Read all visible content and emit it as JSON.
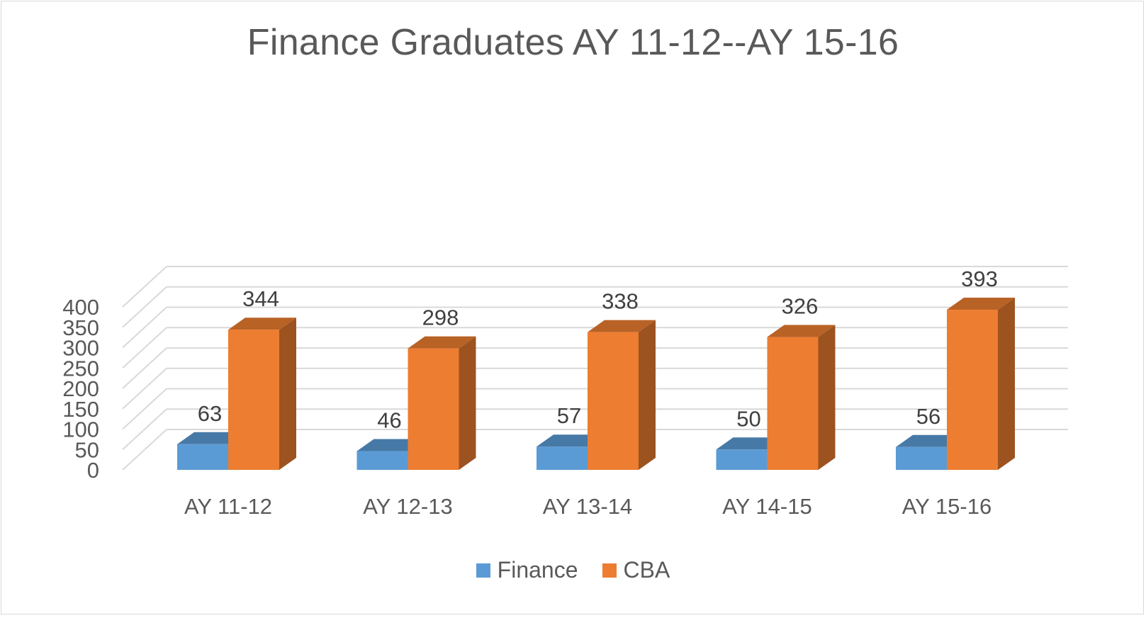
{
  "chart_data": {
    "type": "bar",
    "title": "Finance Graduates AY 11-12--AY 15-16",
    "categories": [
      "AY 11-12",
      "AY 12-13",
      "AY 13-14",
      "AY 14-15",
      "AY 15-16"
    ],
    "series": [
      {
        "name": "Finance",
        "values": [
          63,
          46,
          57,
          50,
          56
        ],
        "color": "#5b9bd5"
      },
      {
        "name": "CBA",
        "values": [
          344,
          298,
          338,
          326,
          393
        ],
        "color": "#ed7d31"
      }
    ],
    "xlabel": "",
    "ylabel": "",
    "ylim": [
      0,
      400
    ],
    "y_ticks": [
      0,
      50,
      100,
      150,
      200,
      250,
      300,
      350,
      400
    ],
    "grid": true,
    "style": "3d-clustered-column",
    "data_labels": true,
    "legend_position": "bottom"
  }
}
